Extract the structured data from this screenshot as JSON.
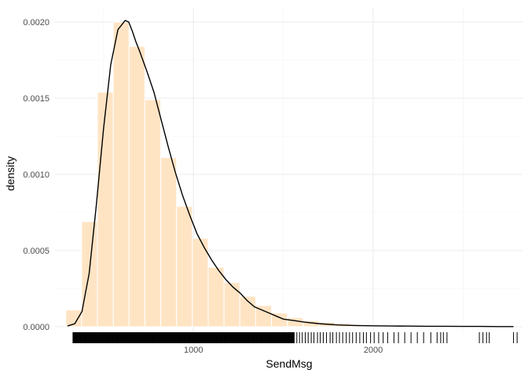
{
  "chart_data": {
    "type": "histogram+density",
    "xlabel": "SendMsg",
    "ylabel": "density",
    "xlim": [
      230,
      2830
    ],
    "ylim": [
      0,
      0.00209
    ],
    "x_ticks": [
      1000,
      2000
    ],
    "x_tick_labels": [
      "1000",
      "2000"
    ],
    "x_minor_ticks": [
      500,
      1500,
      2500
    ],
    "y_ticks": [
      0,
      0.0005,
      0.001,
      0.0015,
      0.002
    ],
    "y_tick_labels": [
      "0.0000",
      "0.0005",
      "0.0010",
      "0.0015",
      "0.0020"
    ],
    "grid": true,
    "colors": {
      "histogram_fill": "#FFE4C4",
      "histogram_edge": "#ffffff",
      "density_line": "#000000",
      "rug": "#000000",
      "grid": "#ebebeb"
    },
    "histogram": {
      "bin_width": 88,
      "bins": [
        {
          "x0": 290,
          "x1": 378,
          "density": 0.00011
        },
        {
          "x0": 378,
          "x1": 466,
          "density": 0.00069
        },
        {
          "x0": 466,
          "x1": 554,
          "density": 0.00154
        },
        {
          "x0": 554,
          "x1": 642,
          "density": 0.002
        },
        {
          "x0": 642,
          "x1": 730,
          "density": 0.00184
        },
        {
          "x0": 730,
          "x1": 818,
          "density": 0.00149
        },
        {
          "x0": 818,
          "x1": 906,
          "density": 0.00111
        },
        {
          "x0": 906,
          "x1": 994,
          "density": 0.00079
        },
        {
          "x0": 994,
          "x1": 1082,
          "density": 0.00058
        },
        {
          "x0": 1082,
          "x1": 1170,
          "density": 0.00039
        },
        {
          "x0": 1170,
          "x1": 1258,
          "density": 0.00029
        },
        {
          "x0": 1258,
          "x1": 1346,
          "density": 0.0002
        },
        {
          "x0": 1346,
          "x1": 1434,
          "density": 0.00014
        },
        {
          "x0": 1434,
          "x1": 1522,
          "density": 9e-05
        },
        {
          "x0": 1522,
          "x1": 1610,
          "density": 6e-05
        },
        {
          "x0": 1610,
          "x1": 1698,
          "density": 4e-05
        },
        {
          "x0": 1698,
          "x1": 1786,
          "density": 3e-05
        },
        {
          "x0": 1786,
          "x1": 1874,
          "density": 2e-05
        },
        {
          "x0": 1874,
          "x1": 1962,
          "density": 1.2e-05
        },
        {
          "x0": 1962,
          "x1": 2050,
          "density": 8e-06
        },
        {
          "x0": 2050,
          "x1": 2138,
          "density": 6e-06
        },
        {
          "x0": 2138,
          "x1": 2226,
          "density": 4e-06
        },
        {
          "x0": 2226,
          "x1": 2314,
          "density": 4e-06
        },
        {
          "x0": 2314,
          "x1": 2402,
          "density": 3e-06
        },
        {
          "x0": 2402,
          "x1": 2490,
          "density": 2e-06
        },
        {
          "x0": 2490,
          "x1": 2578,
          "density": 2e-06
        }
      ]
    },
    "density_curve": {
      "x": [
        300,
        340,
        380,
        420,
        460,
        500,
        540,
        580,
        620,
        640,
        660,
        680,
        700,
        740,
        780,
        820,
        860,
        900,
        940,
        980,
        1020,
        1060,
        1100,
        1140,
        1180,
        1220,
        1260,
        1300,
        1340,
        1380,
        1420,
        1460,
        1500,
        1560,
        1620,
        1700,
        1800,
        1900,
        2000,
        2100,
        2200,
        2300,
        2400,
        2500,
        2600,
        2700,
        2780
      ],
      "y": [
        5e-06,
        2e-05,
        0.0001,
        0.00035,
        0.0008,
        0.0013,
        0.00172,
        0.00195,
        0.00201,
        0.002,
        0.00194,
        0.00187,
        0.00181,
        0.00168,
        0.00154,
        0.00136,
        0.00118,
        0.00101,
        0.00086,
        0.00073,
        0.00061,
        0.00052,
        0.00044,
        0.00037,
        0.00031,
        0.00026,
        0.00022,
        0.00017,
        0.00013,
        0.00011,
        9e-05,
        7e-05,
        5e-05,
        4e-05,
        3e-05,
        2e-05,
        1.2e-05,
        8e-06,
        6e-06,
        5e-06,
        4e-06,
        3e-06,
        3e-06,
        2e-06,
        2e-06,
        1e-06,
        1e-06
      ]
    },
    "rug": {
      "dense_range": [
        330,
        1560
      ],
      "dense_step": 3,
      "sparse_values": [
        1575,
        1590,
        1605,
        1622,
        1638,
        1655,
        1670,
        1690,
        1705,
        1722,
        1740,
        1760,
        1775,
        1795,
        1812,
        1830,
        1850,
        1868,
        1885,
        1905,
        1925,
        1945,
        1962,
        1985,
        2005,
        2030,
        2055,
        2080,
        2115,
        2140,
        2175,
        2210,
        2245,
        2280,
        2320,
        2355,
        2375,
        2390,
        2410,
        2590,
        2610,
        2630,
        2645,
        2780,
        2800
      ]
    }
  }
}
